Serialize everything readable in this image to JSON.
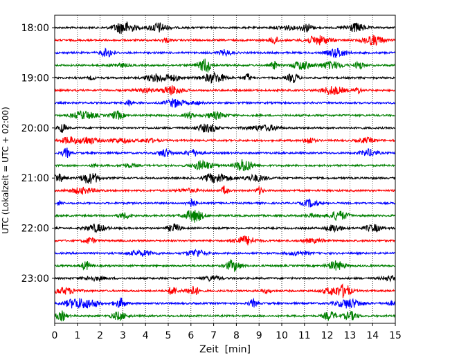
{
  "chart_data": {
    "type": "line",
    "subtype": "seismogram-helicorder",
    "xlabel": "Zeit  [min]",
    "ylabel": "UTC (Lokalzeit = UTC + 02:00)",
    "xlim": [
      0,
      15
    ],
    "x_ticks": [
      "0",
      "1",
      "2",
      "3",
      "4",
      "5",
      "6",
      "7",
      "8",
      "9",
      "10",
      "11",
      "12",
      "13",
      "14",
      "15"
    ],
    "y_tick_labels": [
      "18:00",
      "19:00",
      "20:00",
      "21:00",
      "22:00",
      "23:00"
    ],
    "row_interval_minutes": 15,
    "row_count": 24,
    "grid": "vertical dotted lines at every minute",
    "color_cycle": [
      "#000000",
      "#ff0000",
      "#0000ff",
      "#008000"
    ]
  }
}
